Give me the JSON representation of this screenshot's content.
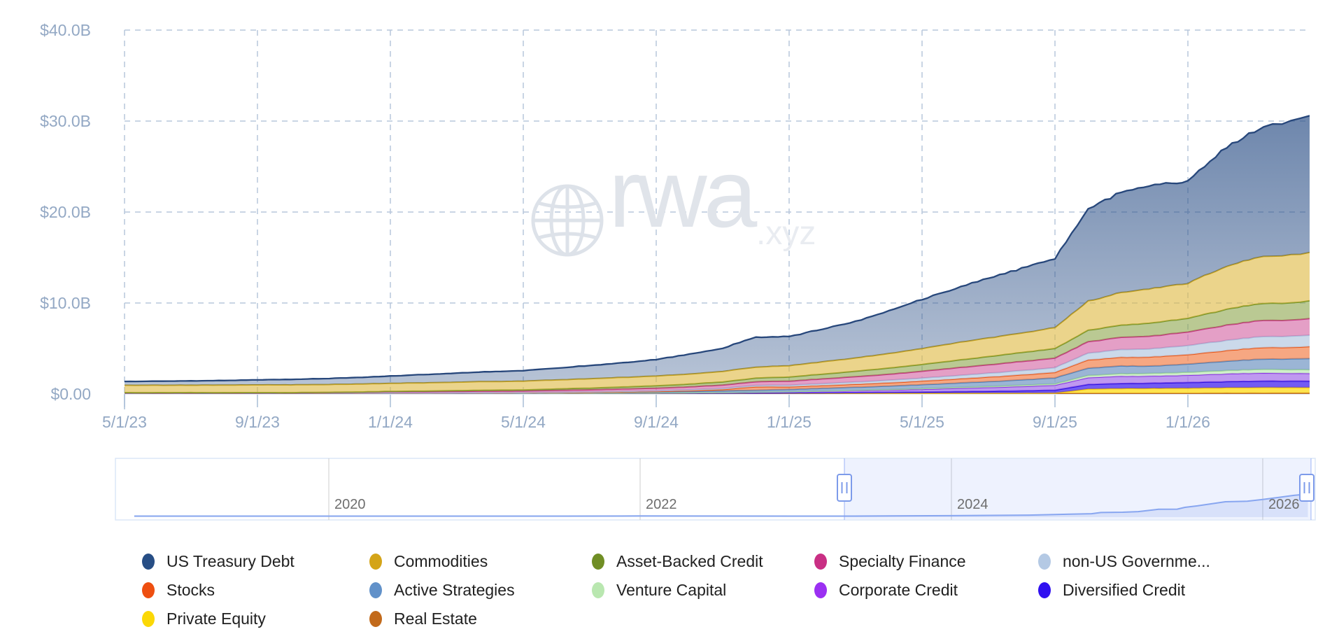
{
  "watermark": {
    "brand": "rwa",
    "suffix": ".xyz"
  },
  "y_axis": {
    "labels": [
      "$40.0B",
      "$30.0B",
      "$20.0B",
      "$10.0B",
      "$0.00"
    ]
  },
  "x_axis": {
    "labels": [
      "5/1/23",
      "9/1/23",
      "1/1/24",
      "5/1/24",
      "9/1/24",
      "1/1/25",
      "5/1/25",
      "9/1/25",
      "1/1/26"
    ]
  },
  "navigator": {
    "year_labels": [
      "2020",
      "2022",
      "2024",
      "2026"
    ]
  },
  "legend": {
    "items": [
      {
        "label": "US Treasury Debt",
        "color": "#274e85"
      },
      {
        "label": "Commodities",
        "color": "#d4a418"
      },
      {
        "label": "Asset-Backed Credit",
        "color": "#708e25"
      },
      {
        "label": "Specialty Finance",
        "color": "#c92f84"
      },
      {
        "label": "non-US Governme...",
        "color": "#b4c9e4"
      },
      {
        "label": "Stocks",
        "color": "#ee4f10"
      },
      {
        "label": "Active Strategies",
        "color": "#6191c9"
      },
      {
        "label": "Venture Capital",
        "color": "#b9e7b0"
      },
      {
        "label": "Corporate Credit",
        "color": "#9b30f2"
      },
      {
        "label": "Diversified Credit",
        "color": "#3010f0"
      },
      {
        "label": "Private Equity",
        "color": "#fbd806"
      },
      {
        "label": "Real Estate",
        "color": "#c26a1b"
      }
    ]
  },
  "chart_data": {
    "type": "area",
    "stacked": true,
    "unit": "USD billions",
    "title": "",
    "ylabel": "",
    "xlabel": "",
    "ylim": [
      0,
      40
    ],
    "y_ticks_billions": [
      0,
      10,
      20,
      30,
      40
    ],
    "x_tick_dates": [
      "2023-05-01",
      "2023-09-01",
      "2024-01-01",
      "2024-05-01",
      "2024-09-01",
      "2025-01-01",
      "2025-05-01",
      "2025-09-01",
      "2026-01-01"
    ],
    "x_range": [
      "2023-05-01",
      "2026-04-20"
    ],
    "months": [
      "2023-05",
      "2023-06",
      "2023-07",
      "2023-08",
      "2023-09",
      "2023-10",
      "2023-11",
      "2023-12",
      "2024-01",
      "2024-02",
      "2024-03",
      "2024-04",
      "2024-05",
      "2024-06",
      "2024-07",
      "2024-08",
      "2024-09",
      "2024-10",
      "2024-11",
      "2024-12",
      "2025-01",
      "2025-02",
      "2025-03",
      "2025-04",
      "2025-05",
      "2025-06",
      "2025-07",
      "2025-08",
      "2025-09",
      "2025-10",
      "2025-11",
      "2025-12",
      "2026-01",
      "2026-02",
      "2026-03",
      "2026-04"
    ],
    "series_bottom_to_top": [
      {
        "name": "Real Estate",
        "line": "#b45d14",
        "fill": "rgba(200,125,60,0.9)",
        "values": [
          0.08,
          0.08,
          0.08,
          0.08,
          0.08,
          0.08,
          0.08,
          0.08,
          0.09,
          0.09,
          0.09,
          0.09,
          0.09,
          0.09,
          0.09,
          0.1,
          0.1,
          0.1,
          0.1,
          0.1,
          0.1,
          0.1,
          0.1,
          0.1,
          0.1,
          0.1,
          0.1,
          0.1,
          0.1,
          0.1,
          0.1,
          0.1,
          0.1,
          0.11,
          0.11,
          0.12
        ]
      },
      {
        "name": "Private Equity",
        "line": "#f2c504",
        "fill": "rgba(255,225,60,0.9)",
        "values": [
          0,
          0,
          0,
          0,
          0,
          0,
          0,
          0,
          0,
          0,
          0,
          0,
          0,
          0,
          0,
          0,
          0,
          0,
          0,
          0,
          0,
          0,
          0,
          0,
          0,
          0,
          0,
          0,
          0.02,
          0.45,
          0.5,
          0.52,
          0.55,
          0.58,
          0.6,
          0.6
        ]
      },
      {
        "name": "Diversified Credit",
        "line": "#2b0ce0",
        "fill": "rgba(80,50,240,0.8)",
        "values": [
          0,
          0,
          0,
          0,
          0,
          0,
          0,
          0,
          0,
          0,
          0,
          0,
          0,
          0,
          0,
          0,
          0,
          0,
          0.01,
          0.01,
          0.02,
          0.04,
          0.06,
          0.09,
          0.12,
          0.16,
          0.2,
          0.25,
          0.3,
          0.5,
          0.55,
          0.58,
          0.62,
          0.66,
          0.7,
          0.7
        ]
      },
      {
        "name": "Corporate Credit",
        "line": "#8b33e3",
        "fill": "rgba(170,118,235,0.75)",
        "values": [
          0.01,
          0.01,
          0.01,
          0.01,
          0.01,
          0.01,
          0.01,
          0.01,
          0.01,
          0.01,
          0.01,
          0.01,
          0.01,
          0.01,
          0.01,
          0.02,
          0.03,
          0.04,
          0.06,
          0.09,
          0.12,
          0.16,
          0.2,
          0.25,
          0.3,
          0.36,
          0.42,
          0.48,
          0.55,
          0.75,
          0.8,
          0.78,
          0.8,
          0.85,
          0.88,
          0.85
        ]
      },
      {
        "name": "Venture Capital",
        "line": "#9fd795",
        "fill": "rgba(201,237,195,0.85)",
        "values": [
          0,
          0,
          0,
          0,
          0,
          0,
          0,
          0,
          0,
          0,
          0,
          0,
          0,
          0,
          0,
          0,
          0,
          0,
          0,
          0.01,
          0.02,
          0.03,
          0.05,
          0.06,
          0.08,
          0.1,
          0.12,
          0.14,
          0.16,
          0.25,
          0.28,
          0.3,
          0.32,
          0.36,
          0.4,
          0.42
        ]
      },
      {
        "name": "Active Strategies",
        "line": "#4e80b8",
        "fill": "rgba(130,162,203,0.8)",
        "values": [
          0.01,
          0.01,
          0.01,
          0.01,
          0.01,
          0.01,
          0.01,
          0.01,
          0.01,
          0.01,
          0.02,
          0.03,
          0.04,
          0.05,
          0.07,
          0.09,
          0.1,
          0.14,
          0.18,
          0.21,
          0.25,
          0.29,
          0.33,
          0.37,
          0.42,
          0.47,
          0.52,
          0.58,
          0.65,
          0.8,
          0.85,
          0.8,
          0.9,
          1.0,
          1.1,
          1.2
        ]
      },
      {
        "name": "Stocks",
        "line": "#ea5718",
        "fill": "rgba(243,138,88,0.75)",
        "values": [
          0.01,
          0.01,
          0.01,
          0.01,
          0.01,
          0.01,
          0.01,
          0.01,
          0.01,
          0.01,
          0.01,
          0.01,
          0.01,
          0.01,
          0.02,
          0.03,
          0.05,
          0.08,
          0.15,
          0.38,
          0.28,
          0.3,
          0.33,
          0.36,
          0.4,
          0.45,
          0.5,
          0.55,
          0.6,
          0.9,
          0.95,
          1.0,
          1.05,
          1.15,
          1.25,
          1.3
        ]
      },
      {
        "name": "non-US Government Debt",
        "line": "#a9c0dd",
        "fill": "rgba(190,207,229,0.8)",
        "values": [
          0.02,
          0.02,
          0.02,
          0.02,
          0.02,
          0.02,
          0.02,
          0.02,
          0.02,
          0.02,
          0.02,
          0.02,
          0.03,
          0.04,
          0.05,
          0.06,
          0.08,
          0.1,
          0.12,
          0.15,
          0.18,
          0.21,
          0.25,
          0.28,
          0.32,
          0.37,
          0.42,
          0.47,
          0.52,
          0.75,
          0.85,
          0.9,
          1.0,
          1.1,
          1.2,
          1.25
        ]
      },
      {
        "name": "Specialty Finance",
        "line": "#c73583",
        "fill": "rgba(214,108,168,0.65)",
        "values": [
          0,
          0,
          0,
          0,
          0,
          0,
          0.03,
          0.06,
          0.1,
          0.12,
          0.14,
          0.16,
          0.16,
          0.2,
          0.22,
          0.25,
          0.28,
          0.32,
          0.36,
          0.4,
          0.45,
          0.52,
          0.58,
          0.66,
          0.75,
          0.85,
          0.92,
          1.0,
          1.05,
          1.25,
          1.35,
          1.4,
          1.5,
          1.65,
          1.75,
          1.8
        ]
      },
      {
        "name": "Asset-Backed Credit",
        "line": "#76952b",
        "fill": "rgba(140,165,75,0.6)",
        "values": [
          0.02,
          0.02,
          0.02,
          0.02,
          0.02,
          0.02,
          0.02,
          0.03,
          0.05,
          0.06,
          0.08,
          0.1,
          0.1,
          0.15,
          0.18,
          0.22,
          0.26,
          0.3,
          0.35,
          0.4,
          0.45,
          0.52,
          0.6,
          0.68,
          0.75,
          0.82,
          0.9,
          0.98,
          1.05,
          1.25,
          1.35,
          1.45,
          1.5,
          1.7,
          1.85,
          1.95
        ]
      },
      {
        "name": "Commodities",
        "line": "#c9a51f",
        "fill": "rgba(222,183,61,0.6)",
        "values": [
          0.8,
          0.81,
          0.82,
          0.83,
          0.84,
          0.85,
          0.86,
          0.87,
          0.88,
          0.9,
          0.92,
          0.95,
          0.97,
          1.0,
          1.02,
          1.05,
          1.08,
          1.1,
          1.15,
          1.2,
          1.25,
          1.35,
          1.45,
          1.6,
          1.75,
          1.9,
          2.05,
          2.15,
          2.3,
          3.2,
          3.6,
          3.8,
          3.85,
          4.6,
          5.1,
          5.3
        ]
      },
      {
        "name": "US Treasury Debt",
        "line": "#27477b",
        "fill": "gradient",
        "values": [
          0.42,
          0.44,
          0.47,
          0.5,
          0.55,
          0.6,
          0.65,
          0.72,
          0.8,
          0.9,
          1.0,
          1.08,
          1.15,
          1.3,
          1.45,
          1.6,
          1.8,
          2.2,
          2.55,
          3.3,
          3.2,
          3.6,
          4.0,
          4.7,
          5.4,
          6.0,
          6.6,
          7.1,
          7.6,
          10.2,
          11.0,
          11.3,
          11.2,
          12.9,
          14.0,
          15.1
        ]
      }
    ],
    "navigator_total_by_year": {
      "x_years": [
        2018.75,
        2019,
        2019.5,
        2020,
        2020.5,
        2021,
        2021.5,
        2022,
        2022.4,
        2023,
        2023.37,
        2024,
        2024.5,
        2024.9,
        2024.96,
        2025.1,
        2025.2,
        2025.33,
        2025.45,
        2025.5,
        2025.58,
        2025.76,
        2025.9,
        2026.0,
        2026.1,
        2026.2,
        2026.29
      ],
      "values": [
        0.02,
        0.04,
        0.08,
        0.13,
        0.28,
        0.65,
        1.15,
        1.55,
        1.5,
        1.3,
        1.37,
        1.9,
        2.7,
        4.5,
        6.1,
        6.5,
        7.3,
        10.4,
        10.6,
        13.0,
        14.9,
        20.4,
        21.0,
        23.3,
        26.0,
        28.8,
        30.6
      ],
      "selected_range_years": [
        2023.31,
        2026.31
      ]
    }
  }
}
